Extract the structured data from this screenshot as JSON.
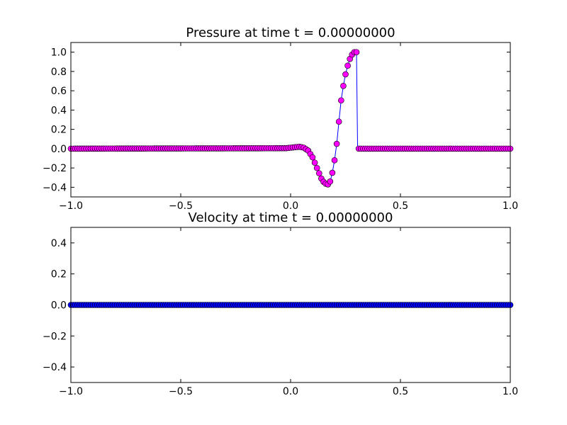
{
  "chart_data": [
    {
      "type": "line",
      "title": "Pressure at time t =     0.00000000",
      "xlabel": "",
      "ylabel": "",
      "xlim": [
        -1.0,
        1.0
      ],
      "ylim": [
        -0.5,
        1.1
      ],
      "xticks": [
        -1.0,
        -0.5,
        0.0,
        0.5,
        1.0
      ],
      "xtick_labels": [
        "−1.0",
        "−0.5",
        "0.0",
        "0.5",
        "1.0"
      ],
      "yticks": [
        -0.4,
        -0.2,
        0.0,
        0.2,
        0.4,
        0.6,
        0.8,
        1.0
      ],
      "ytick_labels": [
        "−0.4",
        "−0.2",
        "0.0",
        "0.2",
        "0.4",
        "0.6",
        "0.8",
        "1.0"
      ],
      "grid": false,
      "line_color": "#0000ff",
      "marker_color": "#ff00ff",
      "marker": "circle",
      "series": [
        {
          "x": [
            -1.0,
            -0.02,
            0.0,
            0.02,
            0.04,
            0.06,
            0.08,
            0.1,
            0.12,
            0.14,
            0.155,
            0.17,
            0.18,
            0.19,
            0.2,
            0.21,
            0.22,
            0.23,
            0.24,
            0.25,
            0.26,
            0.27,
            0.28,
            0.29,
            0.3,
            0.305,
            1.0
          ],
          "y": [
            0.0,
            0.005,
            0.01,
            0.015,
            0.02,
            0.01,
            -0.02,
            -0.09,
            -0.2,
            -0.31,
            -0.36,
            -0.37,
            -0.34,
            -0.25,
            -0.12,
            0.05,
            0.28,
            0.5,
            0.65,
            0.77,
            0.86,
            0.93,
            0.975,
            1.0,
            1.0,
            0.0,
            0.0
          ]
        }
      ]
    },
    {
      "type": "line",
      "title": "Velocity at time t =     0.00000000",
      "xlabel": "",
      "ylabel": "",
      "xlim": [
        -1.0,
        1.0
      ],
      "ylim": [
        -0.5,
        0.5
      ],
      "xticks": [
        -1.0,
        -0.5,
        0.0,
        0.5,
        1.0
      ],
      "xtick_labels": [
        "−1.0",
        "−0.5",
        "0.0",
        "0.5",
        "1.0"
      ],
      "yticks": [
        -0.4,
        -0.2,
        0.0,
        0.2,
        0.4
      ],
      "ytick_labels": [
        "−0.4",
        "−0.2",
        "0.0",
        "0.2",
        "0.4"
      ],
      "grid": false,
      "line_color": "#0000ff",
      "marker_color": "#0000ff",
      "marker": "circle",
      "series": [
        {
          "x": [
            -1.0,
            1.0
          ],
          "y": [
            0.0,
            0.0
          ]
        }
      ]
    }
  ]
}
